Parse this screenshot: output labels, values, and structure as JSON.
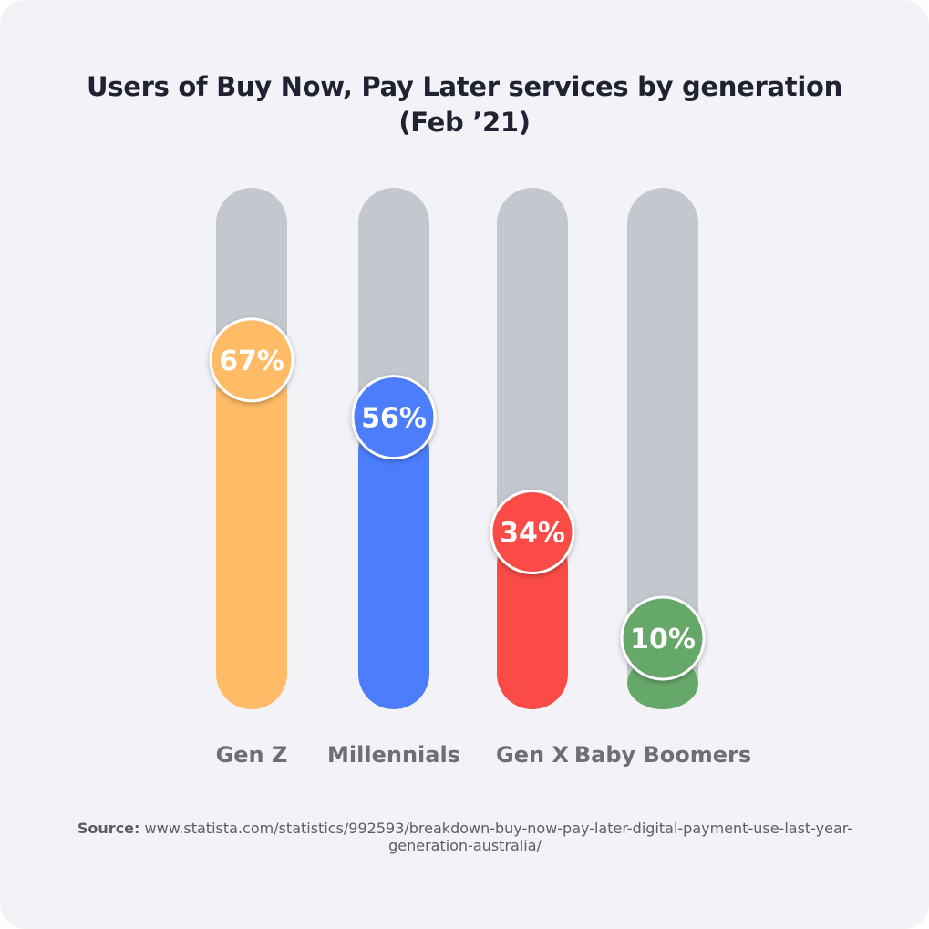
{
  "chart_data": {
    "type": "bar",
    "title_line1": "Users of Buy Now, Pay Later services by generation",
    "title_line2": "(Feb ’21)",
    "categories": [
      "Gen Z",
      "Millennials",
      "Gen X",
      "Baby Boomers"
    ],
    "values": [
      67,
      56,
      34,
      10
    ],
    "value_labels": [
      "67%",
      "56%",
      "34%",
      "10%"
    ],
    "ylim": [
      0,
      100
    ],
    "colors": [
      "#ffbb66",
      "#4b7dfc",
      "#fb4b47",
      "#66a86a"
    ],
    "track_color": "#c3c8cf",
    "grid": false,
    "legend": "none"
  },
  "source": {
    "label": "Source:",
    "text": "www.statista.com/statistics/992593/breakdown-buy-now-pay-later-digital-payment-use-last-year-generation-australia/"
  }
}
